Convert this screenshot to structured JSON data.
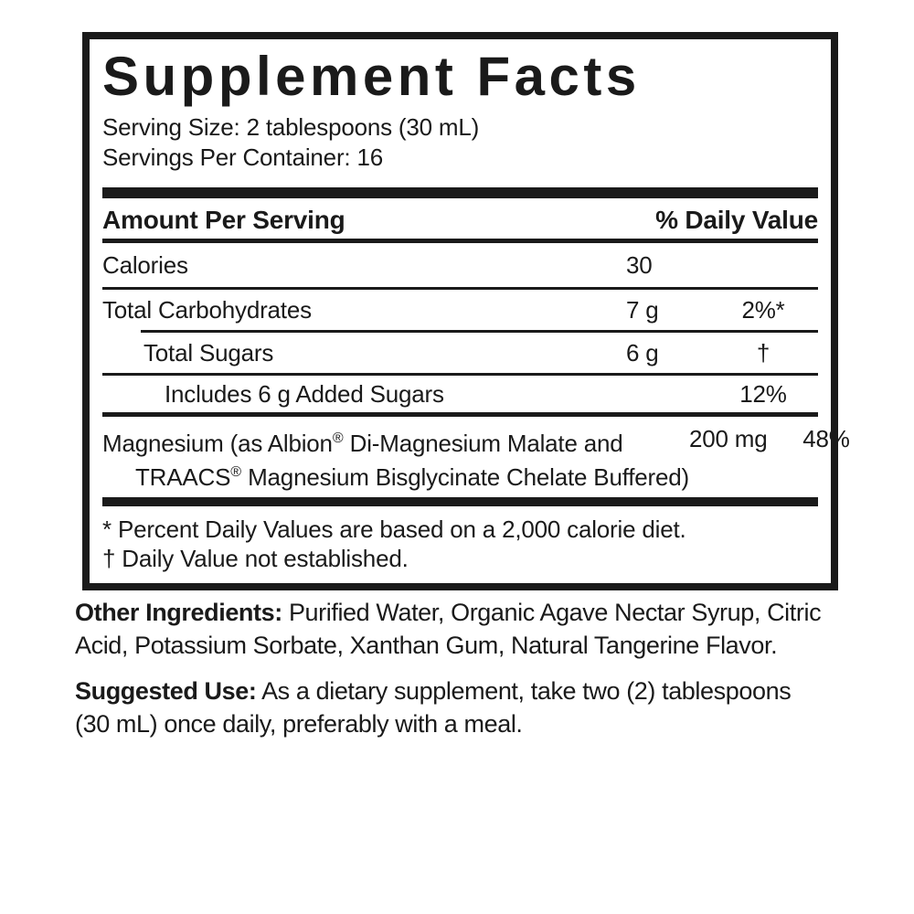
{
  "colors": {
    "ink": "#1a1a1a",
    "background": "#ffffff"
  },
  "panel": {
    "title": "Supplement Facts",
    "serving_size": "Serving Size: 2 tablespoons (30 mL)",
    "servings_per_container": "Servings Per Container: 16",
    "header": {
      "amount_per_serving": "Amount Per Serving",
      "percent_daily_value": "% Daily Value"
    },
    "rows": [
      {
        "name": "Calories",
        "amount": "30",
        "dv": ""
      },
      {
        "name": "Total Carbohydrates",
        "amount": "7 g",
        "dv": "2%*"
      },
      {
        "name": "Total Sugars",
        "amount": "6 g",
        "dv": "†"
      },
      {
        "name": "Includes 6 g Added Sugars",
        "amount": "",
        "dv": "12%"
      },
      {
        "name_line1_text": "Magnesium (as Albion",
        "reg1": "®",
        "name_line1_rest": " Di-Magnesium Malate and",
        "name_line2_text": "TRAACS",
        "reg2": "®",
        "name_line2_rest": " Magnesium Bisglycinate Chelate Buffered)",
        "amount": "200 mg",
        "dv": "48%"
      }
    ],
    "footnotes": [
      "* Percent Daily Values are based on a 2,000 calorie diet.",
      "† Daily Value not established."
    ]
  },
  "other_ingredients": {
    "label": "Other Ingredients:",
    "line1": "Purified Water, Organic Agave Nectar Syrup, Citric",
    "line2": "Acid, Potassium Sorbate, Xanthan Gum, Natural Tangerine Flavor."
  },
  "suggested_use": {
    "label": "Suggested Use:",
    "line1": "As a dietary supplement, take two (2) tablespoons",
    "line2": "(30 mL) once daily, preferably with a meal."
  }
}
